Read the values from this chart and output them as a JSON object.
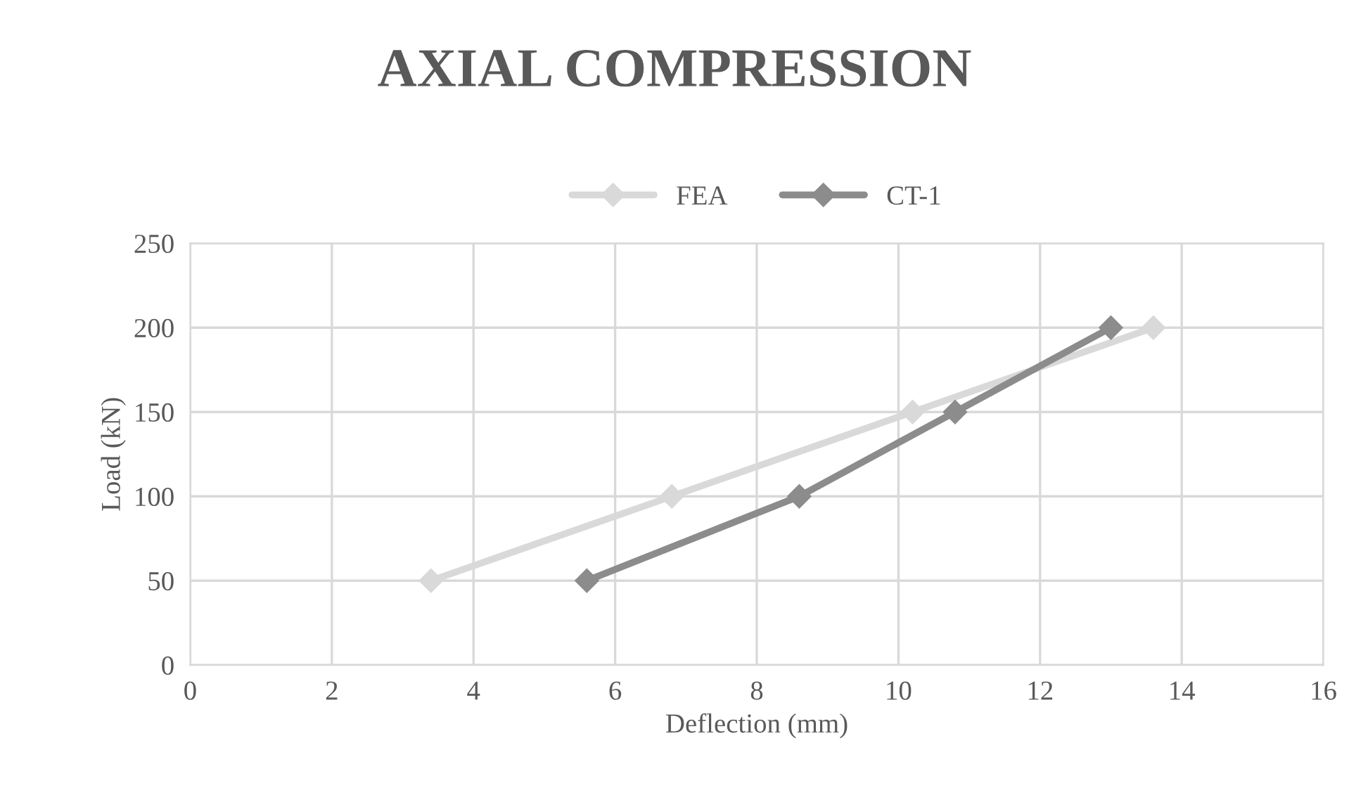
{
  "chart_data": {
    "type": "line",
    "title": "AXIAL COMPRESSION",
    "xlabel": "Deflection (mm)",
    "ylabel": "Load (kN)",
    "series": [
      {
        "name": "FEA",
        "color": "#d9d9d9",
        "x": [
          3.4,
          6.8,
          10.2,
          13.6
        ],
        "values": [
          50,
          100,
          150,
          200
        ]
      },
      {
        "name": "CT-1",
        "color": "#8c8c8c",
        "x": [
          5.6,
          8.6,
          10.8,
          13.0
        ],
        "values": [
          50,
          100,
          150,
          200
        ]
      }
    ],
    "xlim": [
      0,
      16
    ],
    "xticks": [
      0,
      2,
      4,
      6,
      8,
      10,
      12,
      14,
      16
    ],
    "ylim": [
      0,
      250
    ],
    "yticks": [
      0,
      50,
      100,
      150,
      200,
      250
    ],
    "grid": true,
    "legend": "top",
    "marker": "diamond",
    "line_style": "solid"
  }
}
